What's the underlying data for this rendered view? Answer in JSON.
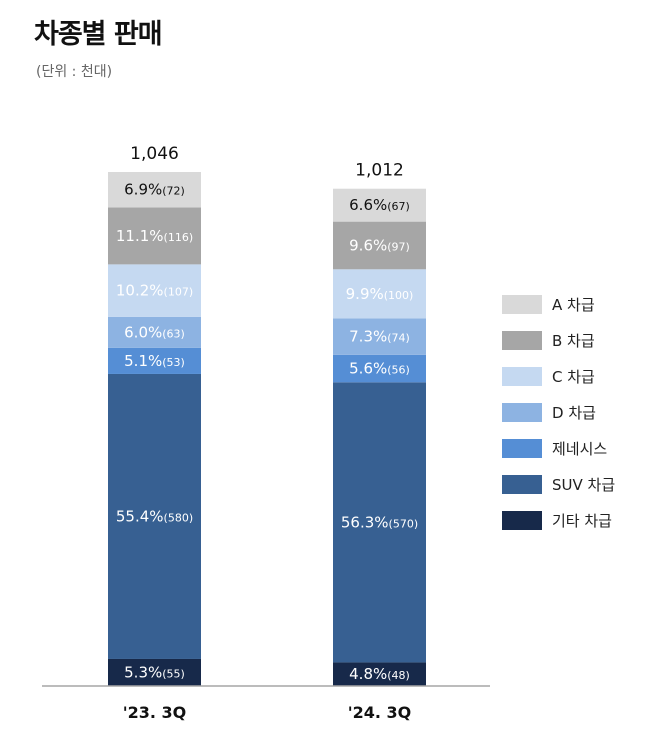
{
  "title": "차종별 판매",
  "unit_note": "(단위 : 천대)",
  "chart_data": {
    "type": "bar",
    "stacked": true,
    "categories": [
      "'23. 3Q",
      "'24. 3Q"
    ],
    "totals": [
      1046,
      1012
    ],
    "total_labels": [
      "1,046",
      "1,012"
    ],
    "series": [
      {
        "name": "기타 차급",
        "color": "#17294a",
        "values": [
          55,
          48
        ],
        "pct": [
          "5.3%",
          "4.8%"
        ]
      },
      {
        "name": "SUV 차급",
        "color": "#376092",
        "values": [
          580,
          570
        ],
        "pct": [
          "55.4%",
          "56.3%"
        ]
      },
      {
        "name": "제네시스",
        "color": "#558ed5",
        "values": [
          53,
          56
        ],
        "pct": [
          "5.1%",
          "5.6%"
        ]
      },
      {
        "name": "D 차급",
        "color": "#8db3e2",
        "values": [
          63,
          74
        ],
        "pct": [
          "6.0%",
          "7.3%"
        ]
      },
      {
        "name": "C 차급",
        "color": "#c5d9f1",
        "values": [
          107,
          100
        ],
        "pct": [
          "10.2%",
          "9.9%"
        ]
      },
      {
        "name": "B 차급",
        "color": "#a6a6a6",
        "values": [
          116,
          97
        ],
        "pct": [
          "11.1%",
          "9.6%"
        ]
      },
      {
        "name": "A 차급",
        "color": "#d9d9d9",
        "values": [
          72,
          67
        ],
        "pct": [
          "6.9%",
          "6.6%"
        ]
      }
    ],
    "legend_position": "right",
    "grid": false
  }
}
